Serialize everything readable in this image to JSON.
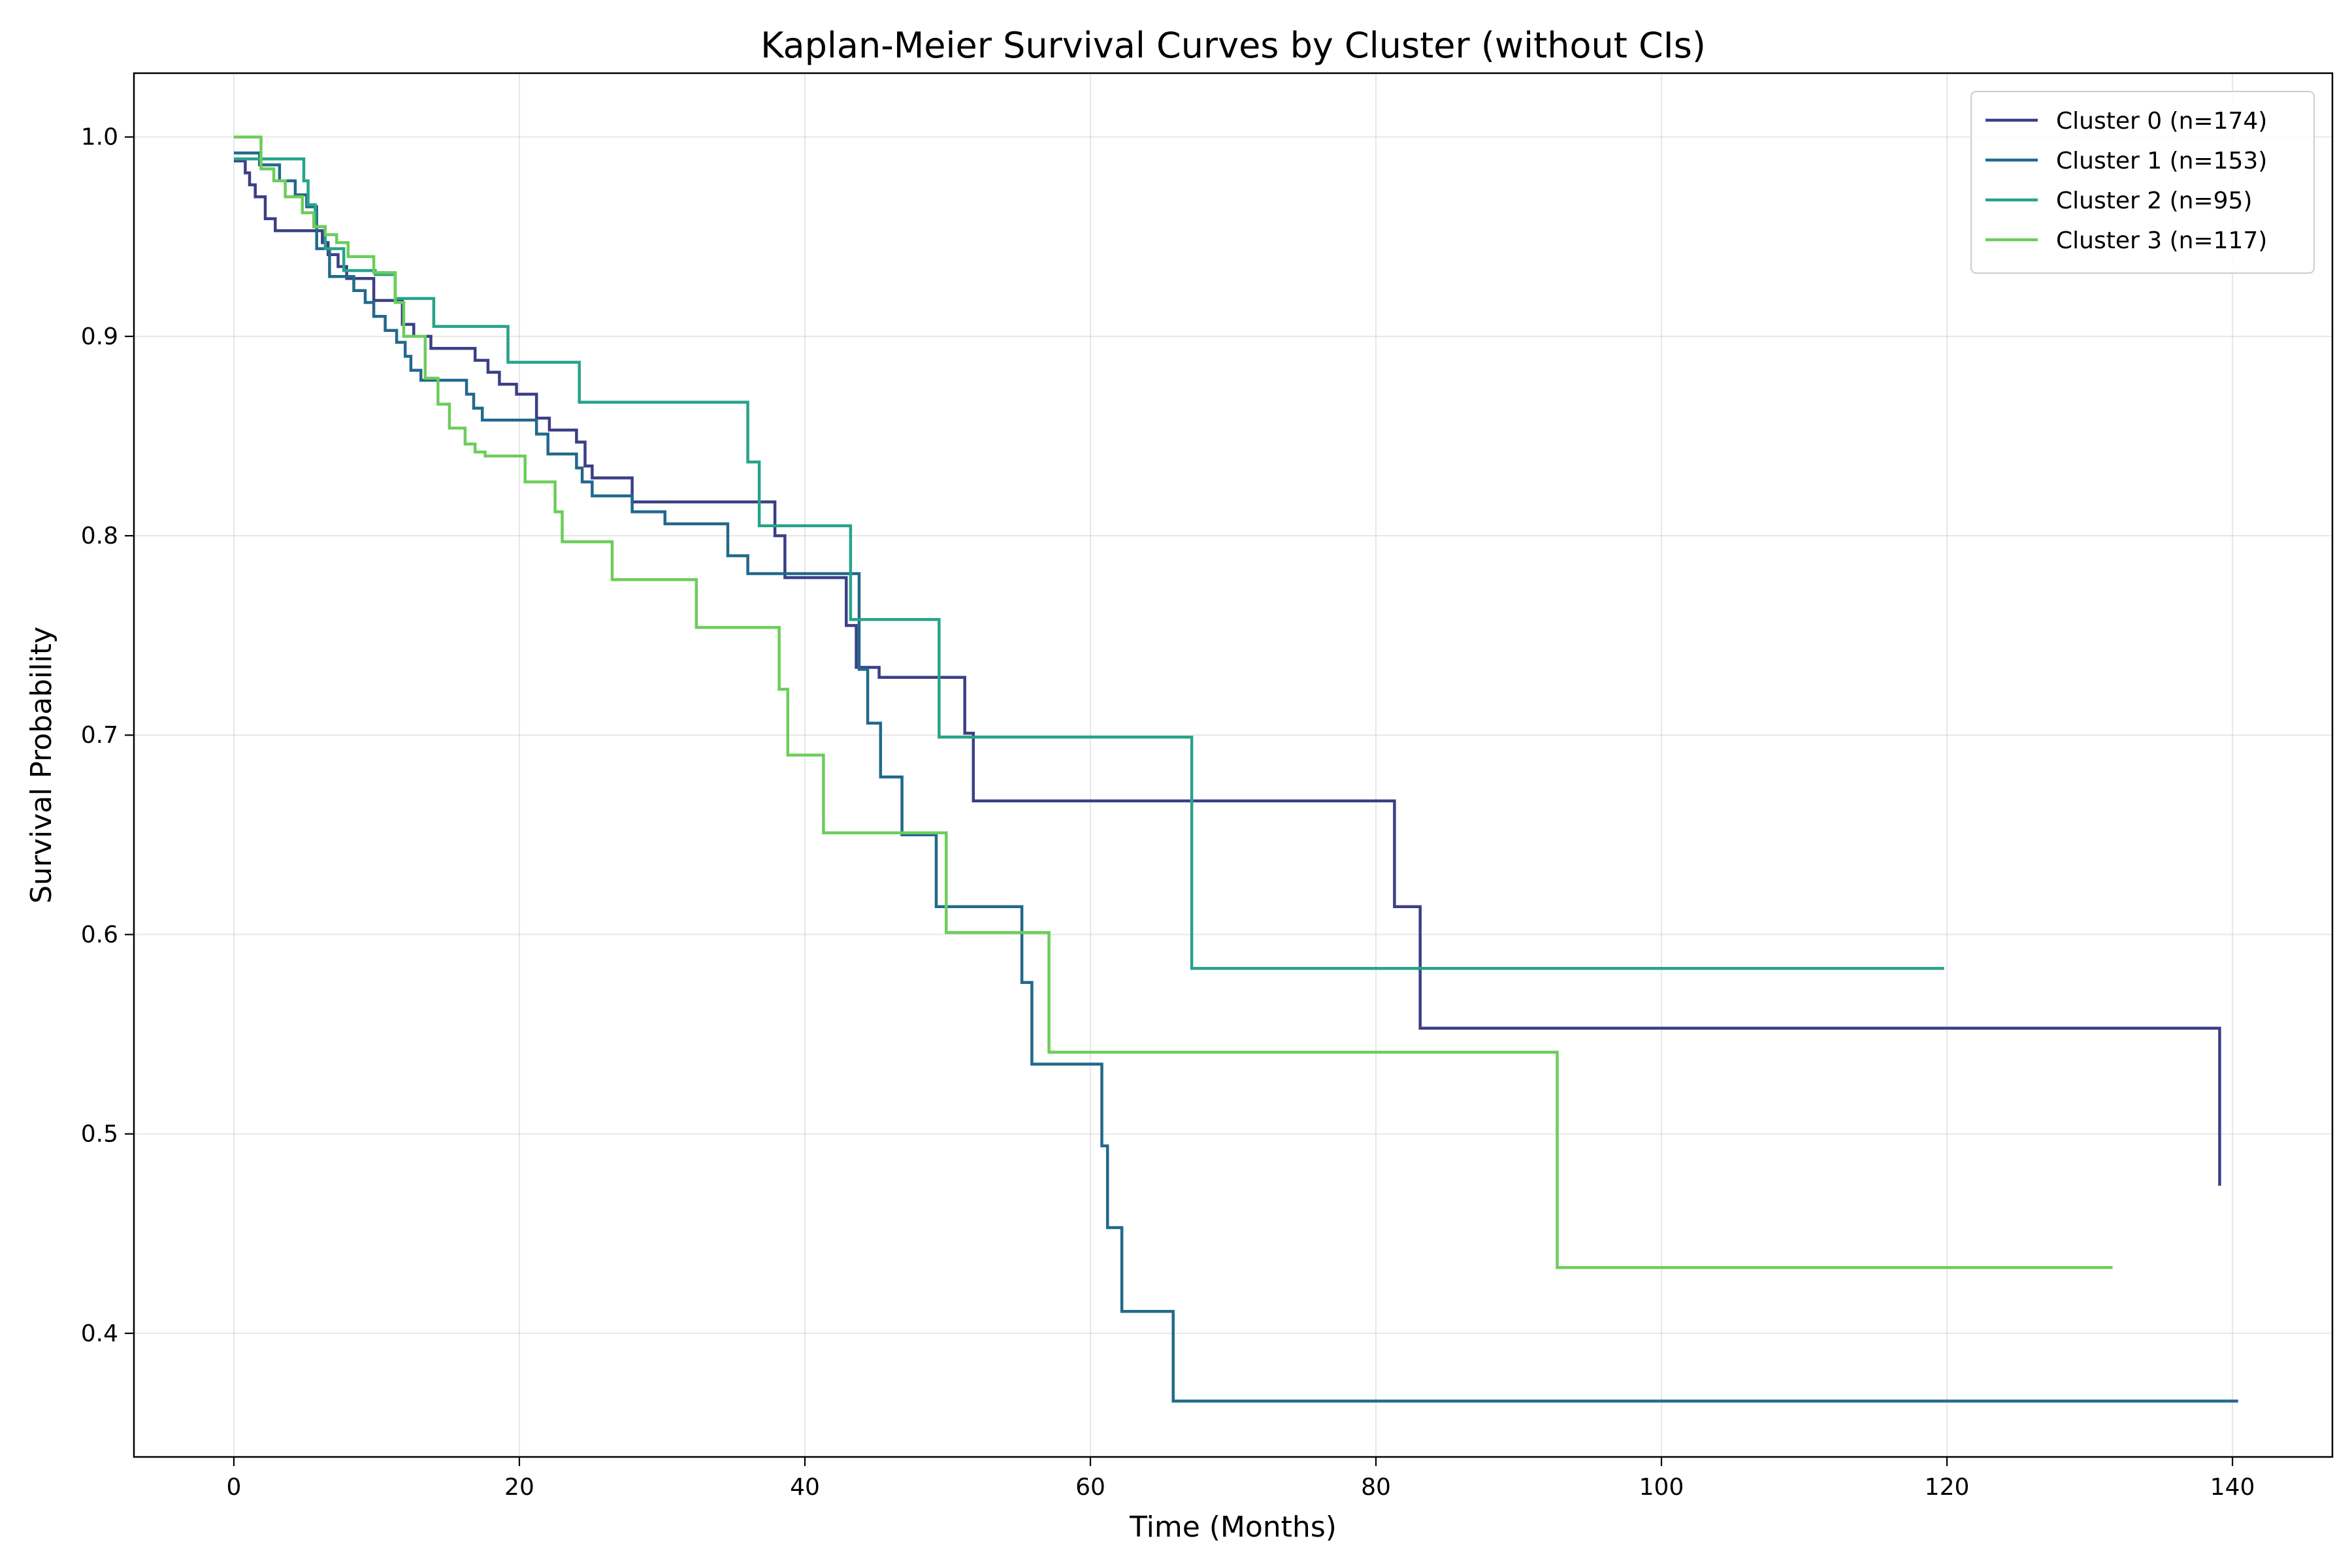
{
  "chart_data": {
    "type": "line",
    "title": "Kaplan-Meier Survival Curves by Cluster (without CIs)",
    "xlabel": "Time (Months)",
    "ylabel": "Survival Probability",
    "xlim": [
      -7,
      147
    ],
    "ylim": [
      0.338,
      1.032
    ],
    "xticks": [
      0,
      20,
      40,
      60,
      80,
      100,
      120,
      140
    ],
    "yticks": [
      0.4,
      0.5,
      0.6,
      0.7,
      0.8,
      0.9,
      1.0
    ],
    "xtick_labels": [
      "0",
      "20",
      "40",
      "60",
      "80",
      "100",
      "120",
      "140"
    ],
    "ytick_labels": [
      "0.4",
      "0.5",
      "0.6",
      "0.7",
      "0.8",
      "0.9",
      "1.0"
    ],
    "grid": true,
    "legend_position": "top-right",
    "step": "post",
    "series": [
      {
        "name": "Cluster 0 (n=174)",
        "color": "#3b3f86",
        "x": [
          0,
          0.8,
          1.1,
          1.5,
          2.2,
          2.9,
          4.9,
          6.2,
          6.6,
          7.3,
          7.9,
          9.8,
          11.8,
          12.6,
          13.8,
          16.9,
          17.8,
          18.6,
          19.8,
          21.2,
          22.1,
          24.0,
          24.6,
          25.1,
          27.9,
          37.9,
          38.6,
          42.9,
          43.6,
          45.2,
          51.2,
          51.8,
          70.0,
          81.3,
          83.1,
          139.1
        ],
        "y": [
          0.988,
          0.982,
          0.976,
          0.97,
          0.959,
          0.953,
          0.953,
          0.947,
          0.941,
          0.935,
          0.929,
          0.918,
          0.906,
          0.9,
          0.894,
          0.888,
          0.882,
          0.876,
          0.871,
          0.859,
          0.853,
          0.847,
          0.835,
          0.829,
          0.817,
          0.8,
          0.779,
          0.755,
          0.734,
          0.729,
          0.701,
          0.667,
          0.667,
          0.614,
          0.553,
          0.474
        ]
      },
      {
        "name": "Cluster 1 (n=153)",
        "color": "#21698c",
        "x": [
          0,
          1.8,
          3.2,
          4.3,
          5.1,
          5.8,
          6.7,
          7.7,
          8.4,
          9.2,
          9.8,
          10.6,
          11.4,
          12.0,
          12.4,
          13.1,
          16.3,
          16.8,
          17.4,
          21.2,
          22.0,
          24.0,
          24.4,
          25.1,
          27.9,
          30.2,
          34.6,
          36.0,
          43.8,
          44.4,
          45.3,
          46.8,
          49.2,
          50.4,
          55.2,
          55.9,
          56.6,
          60.8,
          61.2,
          62.2,
          62.8,
          65.8,
          140.4
        ],
        "y": [
          0.992,
          0.986,
          0.978,
          0.971,
          0.965,
          0.944,
          0.93,
          0.93,
          0.923,
          0.917,
          0.91,
          0.903,
          0.897,
          0.89,
          0.883,
          0.878,
          0.871,
          0.864,
          0.858,
          0.851,
          0.841,
          0.834,
          0.827,
          0.82,
          0.812,
          0.806,
          0.79,
          0.781,
          0.733,
          0.706,
          0.679,
          0.65,
          0.614,
          0.614,
          0.576,
          0.535,
          0.535,
          0.494,
          0.453,
          0.411,
          0.411,
          0.366,
          0.366
        ]
      },
      {
        "name": "Cluster 2 (n=95)",
        "color": "#27a38a",
        "x": [
          0,
          1.3,
          4.9,
          5.2,
          5.7,
          6.4,
          7.7,
          9.9,
          11.3,
          14.0,
          19.2,
          24.2,
          36.0,
          36.8,
          43.2,
          49.4,
          51.8,
          67.1,
          119.8
        ],
        "y": [
          0.989,
          0.989,
          0.978,
          0.966,
          0.955,
          0.944,
          0.933,
          0.931,
          0.919,
          0.905,
          0.887,
          0.867,
          0.837,
          0.805,
          0.758,
          0.699,
          0.699,
          0.583,
          0.583
        ]
      },
      {
        "name": "Cluster 3 (n=117)",
        "color": "#6ccd5a",
        "x": [
          0,
          1.9,
          2.8,
          3.6,
          4.2,
          4.8,
          5.6,
          6.4,
          7.2,
          8.0,
          9.8,
          11.3,
          11.9,
          13.4,
          14.3,
          15.1,
          16.2,
          16.9,
          17.6,
          20.4,
          22.5,
          23.0,
          26.5,
          32.4,
          38.2,
          38.8,
          41.3,
          45.0,
          49.9,
          57.1,
          92.7,
          131.6
        ],
        "y": [
          1.0,
          0.984,
          0.978,
          0.97,
          0.97,
          0.962,
          0.955,
          0.951,
          0.947,
          0.94,
          0.932,
          0.917,
          0.9,
          0.879,
          0.866,
          0.854,
          0.846,
          0.842,
          0.84,
          0.827,
          0.812,
          0.797,
          0.778,
          0.754,
          0.723,
          0.69,
          0.651,
          0.651,
          0.601,
          0.541,
          0.433,
          0.433
        ]
      }
    ]
  }
}
